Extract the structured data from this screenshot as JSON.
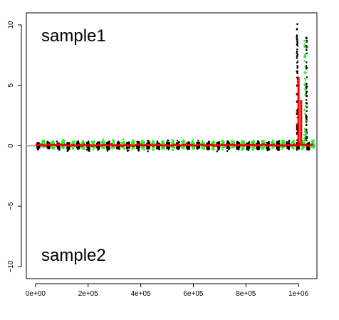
{
  "chart_data": {
    "type": "scatter",
    "title": "",
    "xlabel": "",
    "ylabel": "",
    "xlim": [
      -35000.0,
      1070000.0
    ],
    "ylim": [
      -11,
      11
    ],
    "x_ticks": [
      0,
      200000,
      400000,
      600000,
      800000,
      1000000
    ],
    "x_tick_labels": [
      "0e+00",
      "2e+05",
      "4e+05",
      "6e+05",
      "8e+05",
      "1e+06"
    ],
    "y_ticks": [
      -10,
      -5,
      0,
      5,
      10
    ],
    "y_tick_labels": [
      "−10",
      "−5",
      "0",
      "5",
      "10"
    ],
    "reference_line_y": 0,
    "annotations": [
      {
        "text": "sample1",
        "x": 0,
        "y": 9.5
      },
      {
        "text": "sample2",
        "x": 0,
        "y": -9
      }
    ],
    "grid": false,
    "legend": "none",
    "colors": {
      "black_points": "#000000",
      "green_points": "#22ee22",
      "red_trend": "#ff0000",
      "reference_line": "#aaaaaa"
    },
    "series": [
      {
        "color": "black",
        "description_values": {
          "x_range": [
            0,
            1060000
          ],
          "y_range_bulk": [
            -1.2,
            1.5
          ],
          "spikes": [
            {
              "x": 995000,
              "y_max": 10.1
            },
            {
              "x": 1030000,
              "y_max": 9.2
            }
          ]
        }
      },
      {
        "color": "green",
        "description_values": {
          "x_range": [
            0,
            1060000
          ],
          "y_range_bulk": [
            -1.3,
            1.6
          ],
          "spikes": [
            {
              "x": 1025000,
              "y_max": 8.7
            }
          ]
        }
      },
      {
        "color": "red",
        "description_values": {
          "x_range": [
            0,
            1060000
          ],
          "y_level": 0.05,
          "spikes": [
            {
              "x": 1000000,
              "y_max": 5.7
            },
            {
              "x": 1010000,
              "y_max": 3.8
            }
          ]
        }
      }
    ]
  }
}
